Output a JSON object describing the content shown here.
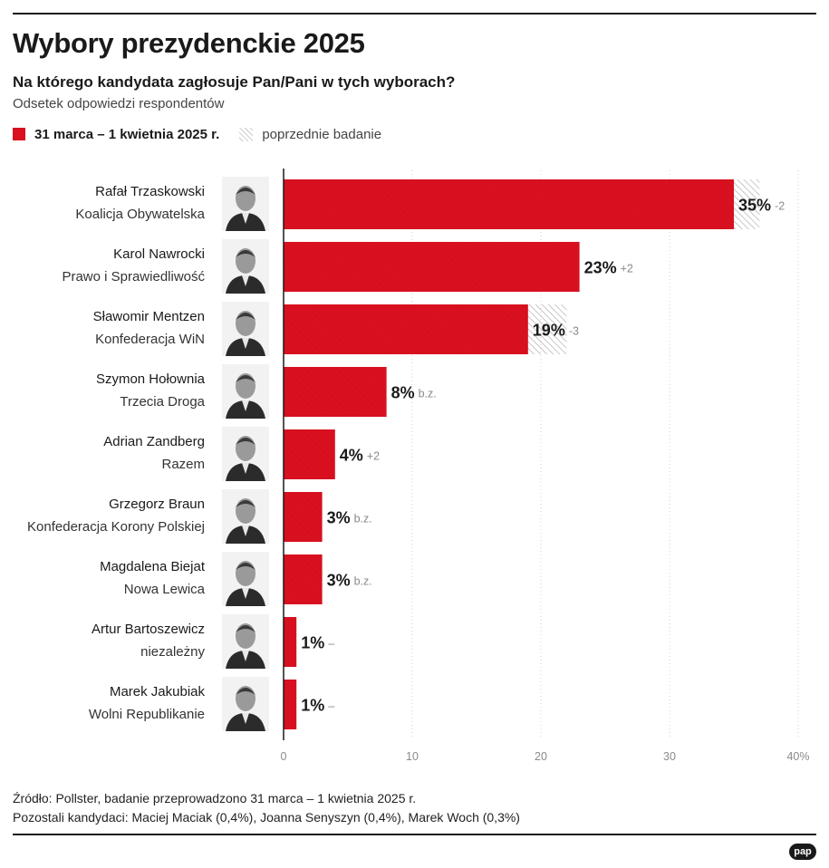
{
  "header": {
    "title": "Wybory prezydenckie 2025",
    "subtitle": "Na którego kandydata zagłosuje Pan/Pani w tych wyborach?",
    "unit_note": "Odsetek odpowiedzi respondentów"
  },
  "legend": {
    "current_label": "31 marca – 1 kwietnia 2025 r.",
    "previous_label": "poprzednie badanie"
  },
  "colors": {
    "current": "#d8101f",
    "previous_hatch": "#b5b5b5",
    "text": "#1a1a1a",
    "muted": "#8a8a8a",
    "grid": "#d0d0d0"
  },
  "chart_data": {
    "type": "bar",
    "orientation": "horizontal",
    "categories": [
      "Rafał Trzaskowski",
      "Karol Nawrocki",
      "Sławomir Mentzen",
      "Szymon Hołownia",
      "Adrian Zandberg",
      "Grzegorz Braun",
      "Magdalena Biejat",
      "Artur Bartoszewicz",
      "Marek Jakubiak"
    ],
    "parties": [
      "Koalicja Obywatelska",
      "Prawo i Sprawiedliwość",
      "Konfederacja WiN",
      "Trzecia Droga",
      "Razem",
      "Konfederacja Korony Polskiej",
      "Nowa Lewica",
      "niezależny",
      "Wolni Republikanie"
    ],
    "series": [
      {
        "name": "31 marca – 1 kwietnia 2025 r.",
        "values": [
          35,
          23,
          19,
          8,
          4,
          3,
          3,
          1,
          1
        ]
      },
      {
        "name": "poprzednie badanie",
        "values": [
          37,
          21,
          22,
          8,
          2,
          3,
          3,
          null,
          null
        ]
      }
    ],
    "value_labels": [
      "35%",
      "23%",
      "19%",
      "8%",
      "4%",
      "3%",
      "3%",
      "1%",
      "1%"
    ],
    "change_labels": [
      "-2",
      "+2",
      "-3",
      "b.z.",
      "+2",
      "b.z.",
      "b.z.",
      "–",
      "–"
    ],
    "xticks": [
      0,
      10,
      20,
      30,
      40
    ],
    "xtick_labels": [
      "0",
      "10",
      "20",
      "30",
      "40%"
    ],
    "xlim": [
      0,
      40
    ],
    "grid": true,
    "legend_position": "top-left"
  },
  "footer": {
    "source": "Źródło: Pollster, badanie przeprowadzono 31 marca – 1 kwietnia 2025 r.",
    "others": "Pozostali kandydaci: Maciej Maciak (0,4%), Joanna Senyszyn (0,4%), Marek Woch (0,3%)",
    "logo": "pap"
  }
}
